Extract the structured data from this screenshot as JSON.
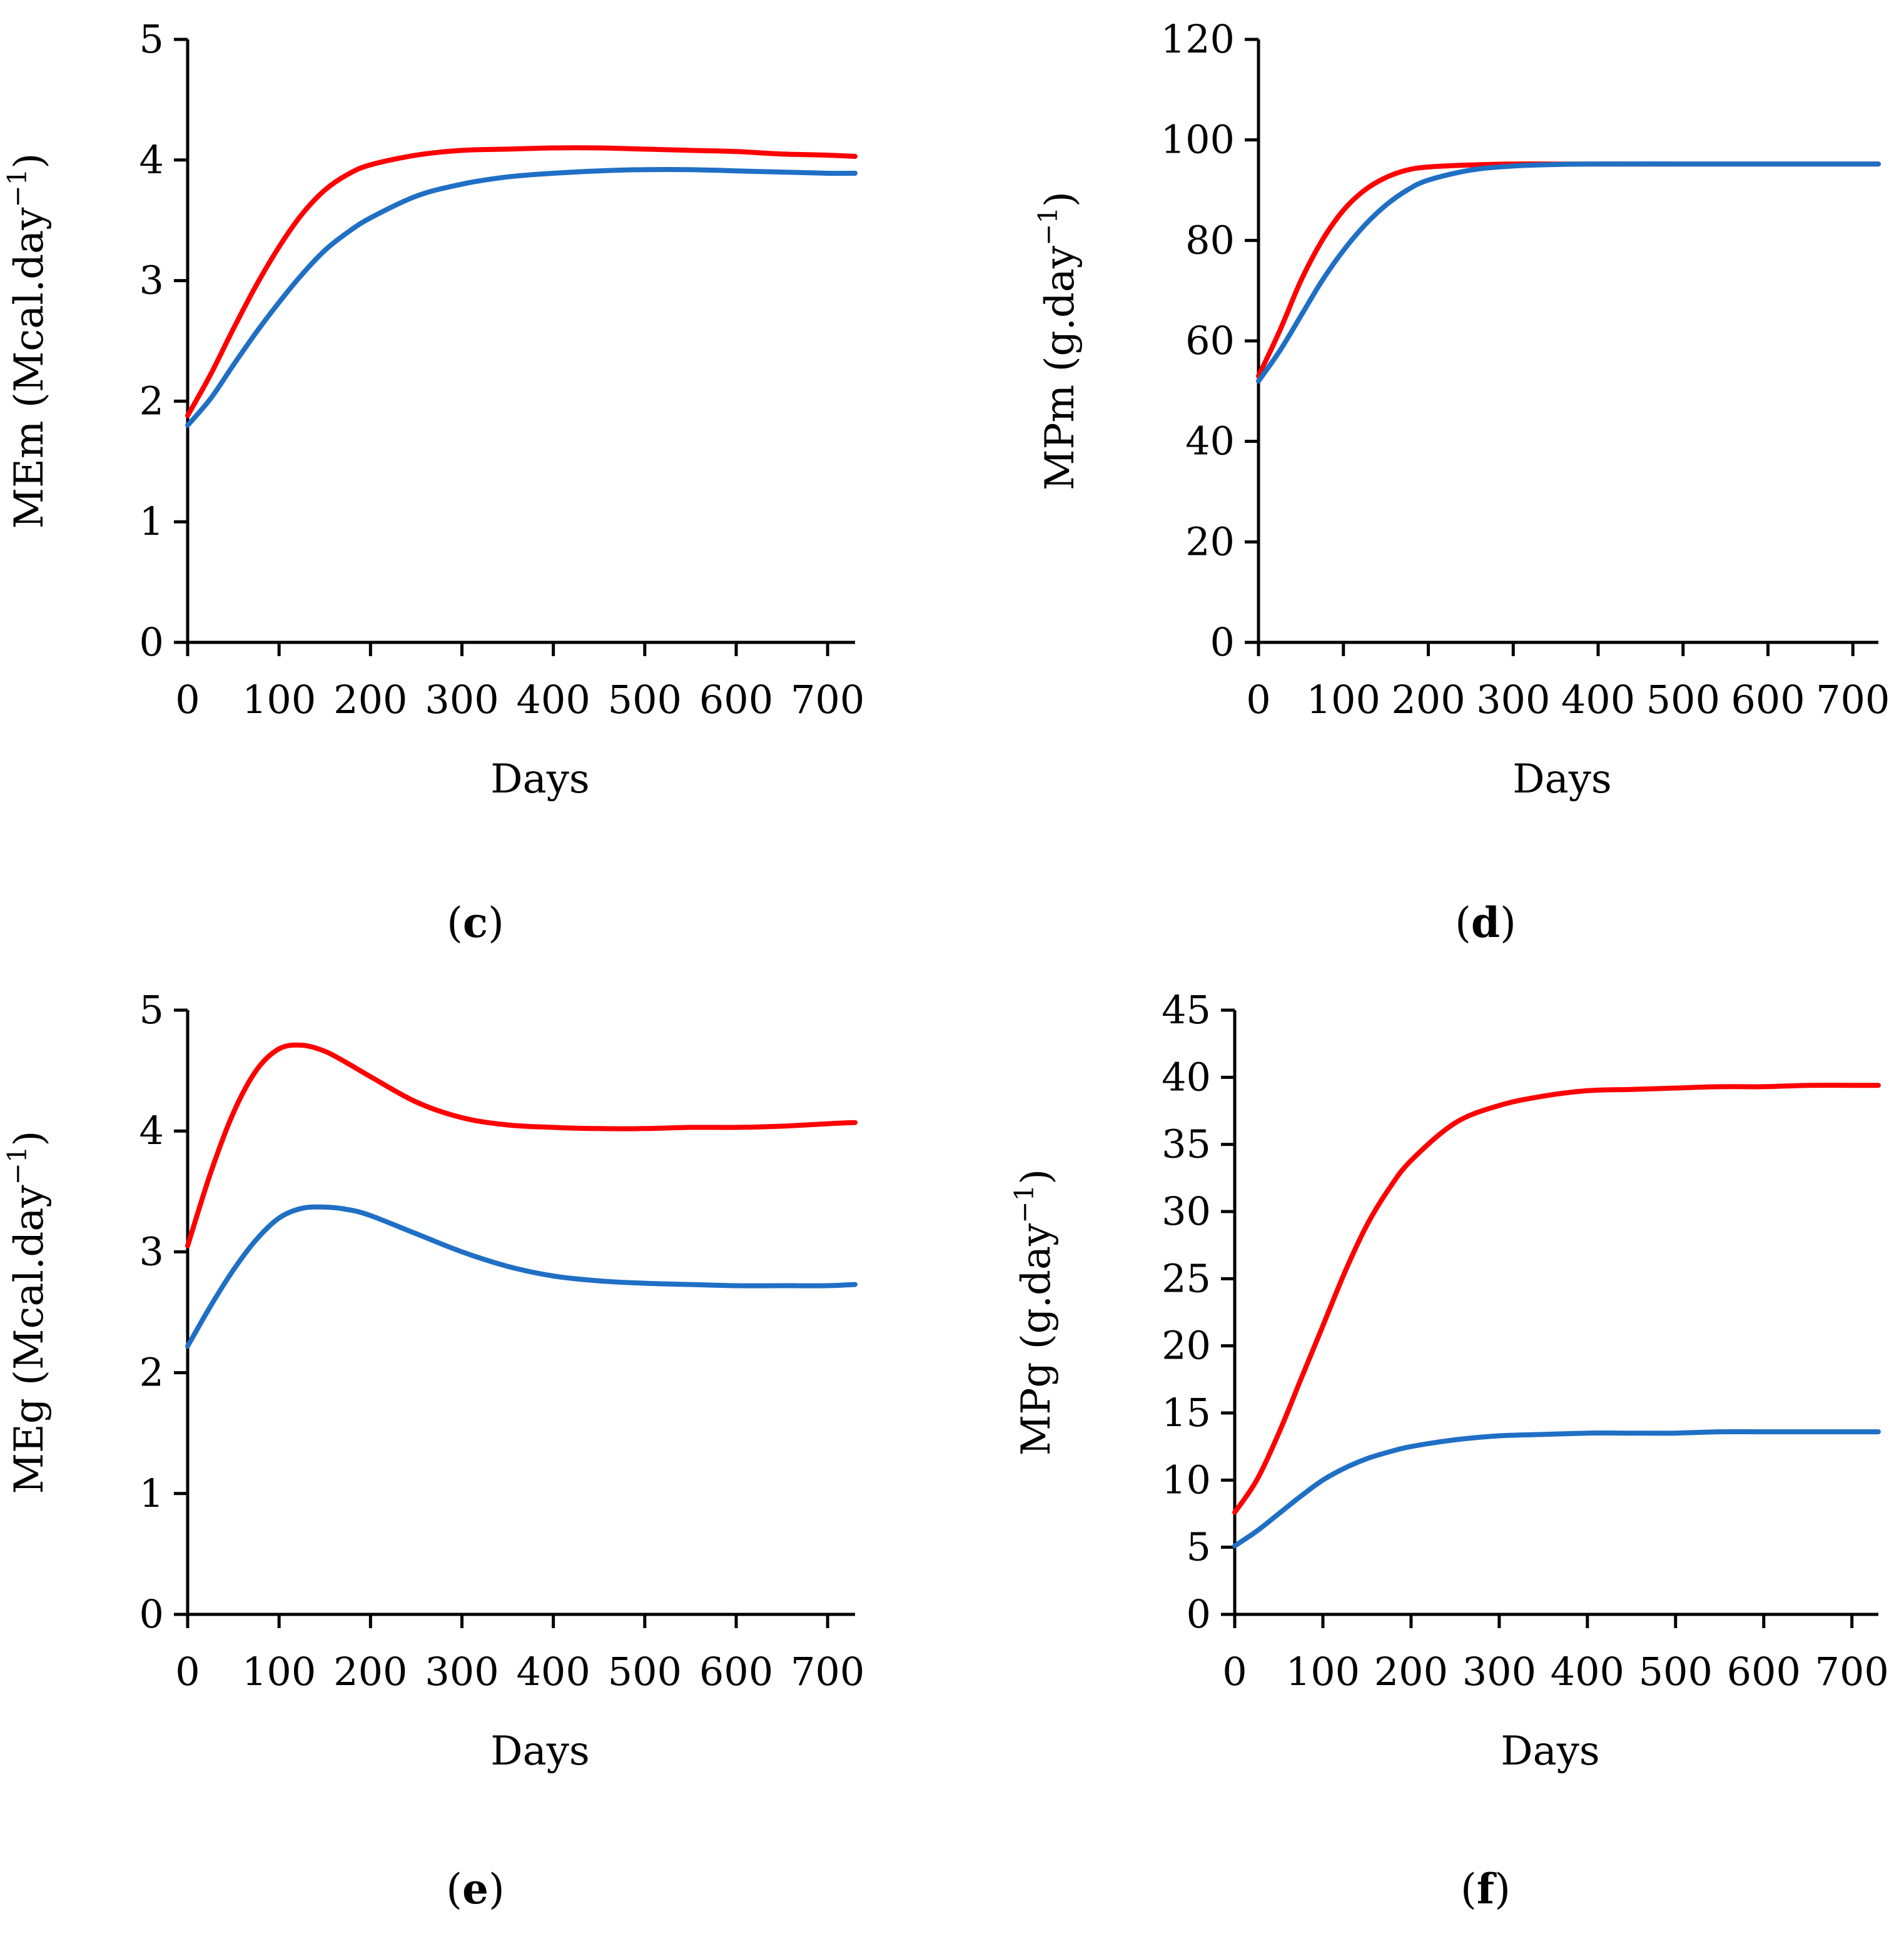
{
  "chart_data": [
    {
      "panel": "c",
      "caption": "(c)",
      "caption_parts": [
        "(",
        "c",
        ")"
      ],
      "type": "line",
      "xlabel": "Days",
      "ylabel": "MEm (Mcal.day⁻¹)",
      "ylabel_parts": [
        "MEm (Mcal.day",
        "−1",
        ")"
      ],
      "xlim": [
        0,
        730
      ],
      "ylim": [
        0,
        5
      ],
      "xticks": [
        0,
        100,
        200,
        300,
        400,
        500,
        600,
        700
      ],
      "yticks": [
        0,
        1,
        2,
        3,
        4,
        5
      ],
      "grid": false,
      "series": [
        {
          "color": "#ff0000",
          "x": [
            0,
            25,
            50,
            75,
            100,
            125,
            150,
            175,
            200,
            250,
            300,
            350,
            400,
            450,
            500,
            550,
            600,
            650,
            700,
            730
          ],
          "values": [
            1.88,
            2.22,
            2.6,
            2.96,
            3.28,
            3.55,
            3.75,
            3.88,
            3.96,
            4.04,
            4.08,
            4.09,
            4.1,
            4.1,
            4.09,
            4.08,
            4.07,
            4.05,
            4.04,
            4.03
          ]
        },
        {
          "color": "#1f6fc5",
          "x": [
            0,
            25,
            50,
            75,
            100,
            125,
            150,
            175,
            200,
            250,
            300,
            350,
            400,
            450,
            500,
            550,
            600,
            650,
            700,
            730
          ],
          "values": [
            1.8,
            2.02,
            2.3,
            2.57,
            2.82,
            3.05,
            3.25,
            3.4,
            3.52,
            3.7,
            3.8,
            3.86,
            3.89,
            3.91,
            3.92,
            3.92,
            3.91,
            3.9,
            3.89,
            3.89
          ]
        }
      ]
    },
    {
      "panel": "d",
      "caption": "(d)",
      "caption_parts": [
        "(",
        "d",
        ")"
      ],
      "type": "line",
      "xlabel": "Days",
      "ylabel": "MPm (g.day⁻¹)",
      "ylabel_parts": [
        "MPm (g.day",
        "−1",
        ")"
      ],
      "xlim": [
        0,
        730
      ],
      "ylim": [
        0,
        120
      ],
      "xticks": [
        0,
        100,
        200,
        300,
        400,
        500,
        600,
        700
      ],
      "yticks": [
        0,
        20,
        40,
        60,
        80,
        100,
        120
      ],
      "grid": false,
      "series": [
        {
          "color": "#ff0000",
          "x": [
            0,
            25,
            50,
            75,
            100,
            125,
            150,
            175,
            200,
            250,
            300,
            350,
            400,
            500,
            600,
            700,
            730
          ],
          "values": [
            53,
            62,
            72,
            80,
            86,
            90,
            92.5,
            94,
            94.6,
            95,
            95.2,
            95.2,
            95.2,
            95.2,
            95.2,
            95.2,
            95.2
          ]
        },
        {
          "color": "#1f6fc5",
          "x": [
            0,
            25,
            50,
            75,
            100,
            125,
            150,
            175,
            200,
            250,
            300,
            350,
            400,
            500,
            600,
            700,
            730
          ],
          "values": [
            52,
            58,
            65,
            72,
            78,
            83,
            87,
            90,
            92,
            94,
            94.8,
            95.1,
            95.2,
            95.2,
            95.2,
            95.2,
            95.2
          ]
        }
      ]
    },
    {
      "panel": "e",
      "caption": "(e)",
      "caption_parts": [
        "(",
        "e",
        ")"
      ],
      "type": "line",
      "xlabel": "Days",
      "ylabel": "MEg (Mcal.day⁻¹)",
      "ylabel_parts": [
        "MEg (Mcal.day",
        "−1",
        ")"
      ],
      "xlim": [
        0,
        730
      ],
      "ylim": [
        0,
        5
      ],
      "xticks": [
        0,
        100,
        200,
        300,
        400,
        500,
        600,
        700
      ],
      "yticks": [
        0,
        1,
        2,
        3,
        4,
        5
      ],
      "grid": false,
      "series": [
        {
          "color": "#ff0000",
          "x": [
            0,
            25,
            50,
            75,
            100,
            125,
            150,
            175,
            200,
            250,
            300,
            350,
            400,
            450,
            500,
            550,
            600,
            650,
            700,
            730
          ],
          "values": [
            3.05,
            3.65,
            4.15,
            4.5,
            4.68,
            4.71,
            4.66,
            4.56,
            4.45,
            4.24,
            4.11,
            4.05,
            4.03,
            4.02,
            4.02,
            4.03,
            4.03,
            4.04,
            4.06,
            4.07
          ]
        },
        {
          "color": "#1f6fc5",
          "x": [
            0,
            25,
            50,
            75,
            100,
            125,
            150,
            175,
            200,
            250,
            300,
            350,
            400,
            450,
            500,
            550,
            600,
            650,
            700,
            730
          ],
          "values": [
            2.22,
            2.55,
            2.85,
            3.1,
            3.28,
            3.36,
            3.37,
            3.35,
            3.3,
            3.15,
            3.0,
            2.88,
            2.8,
            2.76,
            2.74,
            2.73,
            2.72,
            2.72,
            2.72,
            2.73
          ]
        }
      ]
    },
    {
      "panel": "f",
      "caption": "(f)",
      "caption_parts": [
        "(",
        "f",
        ")"
      ],
      "type": "line",
      "xlabel": "Days",
      "ylabel": "MPg (g.day⁻¹)",
      "ylabel_parts": [
        "MPg (g.day",
        "−1",
        ")"
      ],
      "xlim": [
        0,
        730
      ],
      "ylim": [
        0,
        45
      ],
      "xticks": [
        0,
        100,
        200,
        300,
        400,
        500,
        600,
        700
      ],
      "yticks": [
        0,
        5,
        10,
        15,
        20,
        25,
        30,
        35,
        40,
        45
      ],
      "grid": false,
      "series": [
        {
          "color": "#ff0000",
          "x": [
            0,
            25,
            50,
            75,
            100,
            125,
            150,
            175,
            200,
            250,
            300,
            350,
            400,
            450,
            500,
            550,
            600,
            650,
            700,
            730
          ],
          "values": [
            7.6,
            10.0,
            13.5,
            17.5,
            21.5,
            25.5,
            29.0,
            31.7,
            33.8,
            36.6,
            37.9,
            38.6,
            39.0,
            39.1,
            39.2,
            39.3,
            39.3,
            39.4,
            39.4,
            39.4
          ]
        },
        {
          "color": "#1f6fc5",
          "x": [
            0,
            25,
            50,
            75,
            100,
            125,
            150,
            175,
            200,
            250,
            300,
            350,
            400,
            450,
            500,
            550,
            600,
            650,
            700,
            730
          ],
          "values": [
            5.1,
            6.2,
            7.5,
            8.8,
            10.0,
            10.9,
            11.6,
            12.1,
            12.5,
            13.0,
            13.3,
            13.4,
            13.5,
            13.5,
            13.5,
            13.6,
            13.6,
            13.6,
            13.6,
            13.6
          ]
        }
      ]
    }
  ]
}
